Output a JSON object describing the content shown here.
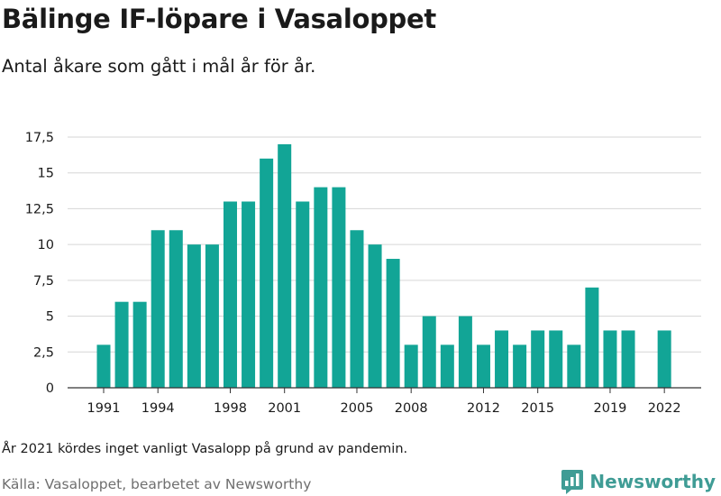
{
  "title": "Bälinge IF-löpare i Vasaloppet",
  "subtitle": "Antal åkare som gått i mål år för år.",
  "note": "År 2021 kördes inget vanligt Vasalopp på grund av pandemin.",
  "source": "Källa: Vasaloppet, bearbetet av Newsworthy",
  "brand": {
    "name": "Newsworthy",
    "icon": "newsworthy-logo-icon"
  },
  "colors": {
    "bar": "#12a596",
    "grid": "#d6d6d6",
    "axis": "#333333",
    "brand": "#3f9c95"
  },
  "chart_data": {
    "type": "bar",
    "title": "Bälinge IF-löpare i Vasaloppet",
    "subtitle": "Antal åkare som gått i mål år för år.",
    "xlabel": "",
    "ylabel": "",
    "ylim": [
      0,
      17.5
    ],
    "grid": true,
    "legend": "none",
    "x": [
      1991,
      1992,
      1993,
      1994,
      1995,
      1996,
      1997,
      1998,
      1999,
      2000,
      2001,
      2002,
      2003,
      2004,
      2005,
      2006,
      2007,
      2008,
      2009,
      2010,
      2011,
      2012,
      2013,
      2014,
      2015,
      2016,
      2017,
      2018,
      2019,
      2020,
      2021,
      2022
    ],
    "values": [
      3,
      6,
      6,
      11,
      11,
      10,
      10,
      13,
      13,
      16,
      17,
      13,
      14,
      14,
      11,
      10,
      9,
      3,
      5,
      3,
      5,
      3,
      4,
      3,
      4,
      4,
      3,
      7,
      4,
      4,
      null,
      4
    ],
    "x_ticks": [
      1991,
      1994,
      1998,
      2001,
      2005,
      2008,
      2012,
      2015,
      2019,
      2022
    ],
    "y_ticks": [
      0,
      2.5,
      5,
      7.5,
      10,
      12.5,
      15,
      17.5
    ],
    "y_tick_labels": [
      "0",
      "2,5",
      "5",
      "7,5",
      "10",
      "12,5",
      "15",
      "17,5"
    ]
  }
}
